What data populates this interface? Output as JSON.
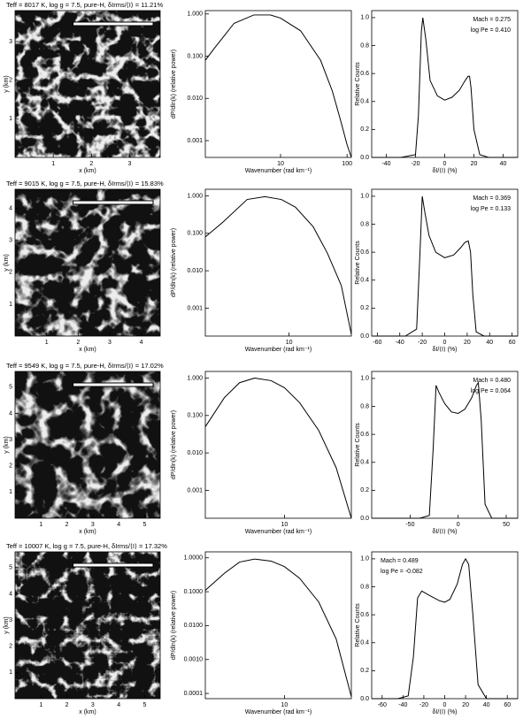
{
  "chart_data": [
    {
      "type": "image",
      "title": "Teff = 8017 K, log g = 7.5, pure-H, δIrms/⟨I⟩ = 11.21%",
      "xlabel": "x (km)",
      "ylabel": "y (km)",
      "xlim": [
        0,
        3.8
      ],
      "ylim": [
        0,
        3.8
      ],
      "xticks": [
        1,
        2,
        3
      ],
      "yticks": [
        1,
        2,
        3
      ]
    },
    {
      "type": "line",
      "xlabel": "Wavenumber (rad km⁻¹)",
      "ylabel": "dP/dln(k) (relative power)",
      "xlog": true,
      "ylog": true,
      "xlim": [
        0.74,
        116
      ],
      "ylim": [
        0.0004,
        1.2
      ],
      "xticks": [
        10,
        100
      ],
      "yticks": [
        0.001,
        {
          "value": 0.01,
          "label": "0.010"
        },
        {
          "value": 0.1,
          "label": "0.100"
        },
        {
          "value": 1,
          "label": "1.000"
        }
      ],
      "x": [
        0.74,
        1,
        2,
        4,
        7,
        10,
        20,
        40,
        60,
        80,
        100,
        116
      ],
      "values": [
        0.08,
        0.15,
        0.6,
        0.95,
        0.95,
        0.8,
        0.4,
        0.08,
        0.015,
        0.003,
        0.0008,
        0.0004
      ]
    },
    {
      "type": "line",
      "xlabel": "δI/⟨I⟩ (%)",
      "ylabel": "Relative Counts",
      "xlim": [
        -50,
        50
      ],
      "ylim": [
        0,
        1.05
      ],
      "xticks": [
        -40,
        -20,
        0,
        20,
        40
      ],
      "yticks": [
        {
          "value": 0,
          "label": "0.0"
        },
        0.2,
        0.4,
        0.6,
        0.8,
        {
          "value": 1,
          "label": "1.0"
        }
      ],
      "annotations": [
        "Mach = 0.275",
        "log Pe = 0.410"
      ],
      "annotation_corner": "upper right",
      "x": [
        -50,
        -30,
        -20,
        -18,
        -16,
        -15,
        -13,
        -10,
        -5,
        0,
        5,
        10,
        14,
        16,
        17,
        18,
        20,
        24,
        30,
        50
      ],
      "values": [
        0,
        0,
        0.02,
        0.3,
        0.9,
        1.0,
        0.85,
        0.55,
        0.44,
        0.41,
        0.43,
        0.48,
        0.55,
        0.58,
        0.58,
        0.5,
        0.2,
        0.02,
        0,
        0
      ]
    },
    {
      "type": "image",
      "title": "Teff = 9015 K, log g = 7.5, pure-H, δIrms/⟨I⟩ = 15.83%",
      "xlabel": "x (km)",
      "ylabel": "y (km)",
      "xlim": [
        0,
        4.6
      ],
      "ylim": [
        0,
        4.6
      ],
      "xticks": [
        1,
        2,
        3,
        4
      ],
      "yticks": [
        1,
        2,
        3,
        4
      ]
    },
    {
      "type": "line",
      "xlabel": "Wavenumber (rad km⁻¹)",
      "ylabel": "dP/dln(k) (relative power)",
      "xlog": true,
      "ylog": true,
      "xlim": [
        0.9,
        60
      ],
      "ylim": [
        0.00018,
        1.5
      ],
      "xticks": [
        10
      ],
      "yticks": [
        0.001,
        {
          "value": 0.01,
          "label": "0.010"
        },
        {
          "value": 0.1,
          "label": "0.100"
        },
        {
          "value": 1,
          "label": "1.000"
        }
      ],
      "x": [
        0.9,
        1.5,
        3,
        5,
        8,
        12,
        20,
        30,
        45,
        60
      ],
      "values": [
        0.08,
        0.2,
        0.8,
        0.95,
        0.8,
        0.5,
        0.15,
        0.03,
        0.004,
        0.0002
      ]
    },
    {
      "type": "line",
      "xlabel": "δI/⟨I⟩ (%)",
      "ylabel": "Relative Counts",
      "xlim": [
        -65,
        65
      ],
      "ylim": [
        0,
        1.05
      ],
      "xticks": [
        -60,
        -40,
        -20,
        0,
        20,
        40,
        60
      ],
      "yticks": [
        {
          "value": 0,
          "label": "0.0"
        },
        0.2,
        0.4,
        0.6,
        0.8,
        {
          "value": 1,
          "label": "1.0"
        }
      ],
      "annotations": [
        "Mach = 0.369",
        "log Pe = 0.133"
      ],
      "annotation_corner": "upper right",
      "x": [
        -65,
        -35,
        -25,
        -22,
        -20,
        -18,
        -14,
        -8,
        0,
        8,
        14,
        18,
        21,
        23,
        25,
        28,
        35,
        65
      ],
      "values": [
        0,
        0,
        0.05,
        0.6,
        1.0,
        0.9,
        0.72,
        0.6,
        0.56,
        0.58,
        0.63,
        0.67,
        0.68,
        0.6,
        0.3,
        0.03,
        0,
        0
      ]
    },
    {
      "type": "image",
      "title": "Teff = 9549 K, log g = 7.5, pure-H, δIrms/⟨I⟩ = 17.02%",
      "xlabel": "x (km)",
      "ylabel": "y (km)",
      "xlim": [
        0,
        5.6
      ],
      "ylim": [
        0,
        5.6
      ],
      "xticks": [
        1,
        2,
        3,
        4,
        5
      ],
      "yticks": [
        1,
        2,
        3,
        4,
        5
      ]
    },
    {
      "type": "line",
      "xlabel": "Wavenumber (rad km⁻¹)",
      "ylabel": "dP/dln(k) (relative power)",
      "xlog": true,
      "ylog": true,
      "xlim": [
        1.2,
        60
      ],
      "ylim": [
        0.00018,
        1.5
      ],
      "xticks": [
        10
      ],
      "yticks": [
        0.001,
        {
          "value": 0.01,
          "label": "0.010"
        },
        {
          "value": 0.1,
          "label": "0.100"
        },
        {
          "value": 1,
          "label": "1.000"
        }
      ],
      "x": [
        1.2,
        2,
        3,
        4.5,
        7,
        10,
        15,
        25,
        40,
        60
      ],
      "values": [
        0.05,
        0.3,
        0.75,
        1.0,
        0.85,
        0.55,
        0.22,
        0.04,
        0.004,
        0.00018
      ]
    },
    {
      "type": "line",
      "xlabel": "δI/⟨I⟩ (%)",
      "ylabel": "Relative Counts",
      "xlim": [
        -90,
        62
      ],
      "ylim": [
        0,
        1.05
      ],
      "xticks": [
        -50,
        0,
        50
      ],
      "yticks": [
        {
          "value": 0,
          "label": "0.0"
        },
        0.2,
        0.4,
        0.6,
        0.8,
        {
          "value": 1,
          "label": "1.0"
        }
      ],
      "annotations": [
        "Mach = 0.480",
        "log Pe = 0.064"
      ],
      "annotation_corner": "upper right",
      "x": [
        -90,
        -40,
        -30,
        -26,
        -23,
        -20,
        -14,
        -7,
        0,
        7,
        14,
        19,
        21,
        24,
        28,
        35,
        62
      ],
      "values": [
        0,
        0,
        0.02,
        0.5,
        0.95,
        0.9,
        0.82,
        0.76,
        0.75,
        0.78,
        0.86,
        0.95,
        0.97,
        0.7,
        0.1,
        0,
        0
      ]
    },
    {
      "type": "image",
      "title": "Teff = 10007 K, log g = 7.5, pure-H, δIrms/⟨I⟩ = 17.32%",
      "xlabel": "x (km)",
      "ylabel": "y (km)",
      "xlim": [
        0,
        5.6
      ],
      "ylim": [
        0,
        5.6
      ],
      "xticks": [
        1,
        2,
        3,
        4,
        5
      ],
      "yticks": [
        1,
        2,
        3,
        4,
        5
      ]
    },
    {
      "type": "line",
      "xlabel": "Wavenumber (rad km⁻¹)",
      "ylabel": "dP/dln(k) (relative power)",
      "xlog": true,
      "ylog": true,
      "xlim": [
        1.2,
        60
      ],
      "ylim": [
        7e-05,
        1.5
      ],
      "xticks": [
        10
      ],
      "yticks": [
        {
          "value": 0.0001,
          "label": "0.0001"
        },
        {
          "value": 0.001,
          "label": "0.0010"
        },
        {
          "value": 0.01,
          "label": "0.0100"
        },
        {
          "value": 0.1,
          "label": "0.1000"
        },
        {
          "value": 1,
          "label": "1.0000"
        }
      ],
      "x": [
        1.2,
        2,
        3,
        4.5,
        7,
        10,
        15,
        25,
        40,
        60
      ],
      "values": [
        0.11,
        0.35,
        0.75,
        0.92,
        0.8,
        0.55,
        0.25,
        0.05,
        0.004,
        8e-05
      ]
    },
    {
      "type": "line",
      "xlabel": "δI/⟨I⟩ (%)",
      "ylabel": "Relative Counts",
      "xlim": [
        -70,
        70
      ],
      "ylim": [
        0,
        1.05
      ],
      "xticks": [
        -60,
        -40,
        -20,
        0,
        20,
        40,
        60
      ],
      "yticks": [
        {
          "value": 0,
          "label": "0.0"
        },
        0.2,
        0.4,
        0.6,
        0.8,
        {
          "value": 1,
          "label": "1.0"
        }
      ],
      "annotations": [
        "Mach = 0.489",
        "log Pe = -0.082"
      ],
      "annotation_corner": "upper left",
      "x": [
        -70,
        -45,
        -35,
        -30,
        -26,
        -22,
        -15,
        -5,
        0,
        5,
        12,
        17,
        20,
        23,
        27,
        32,
        40,
        70
      ],
      "values": [
        0,
        0,
        0.02,
        0.3,
        0.72,
        0.77,
        0.74,
        0.7,
        0.69,
        0.71,
        0.82,
        0.96,
        1.0,
        0.96,
        0.6,
        0.1,
        0,
        0
      ]
    }
  ]
}
